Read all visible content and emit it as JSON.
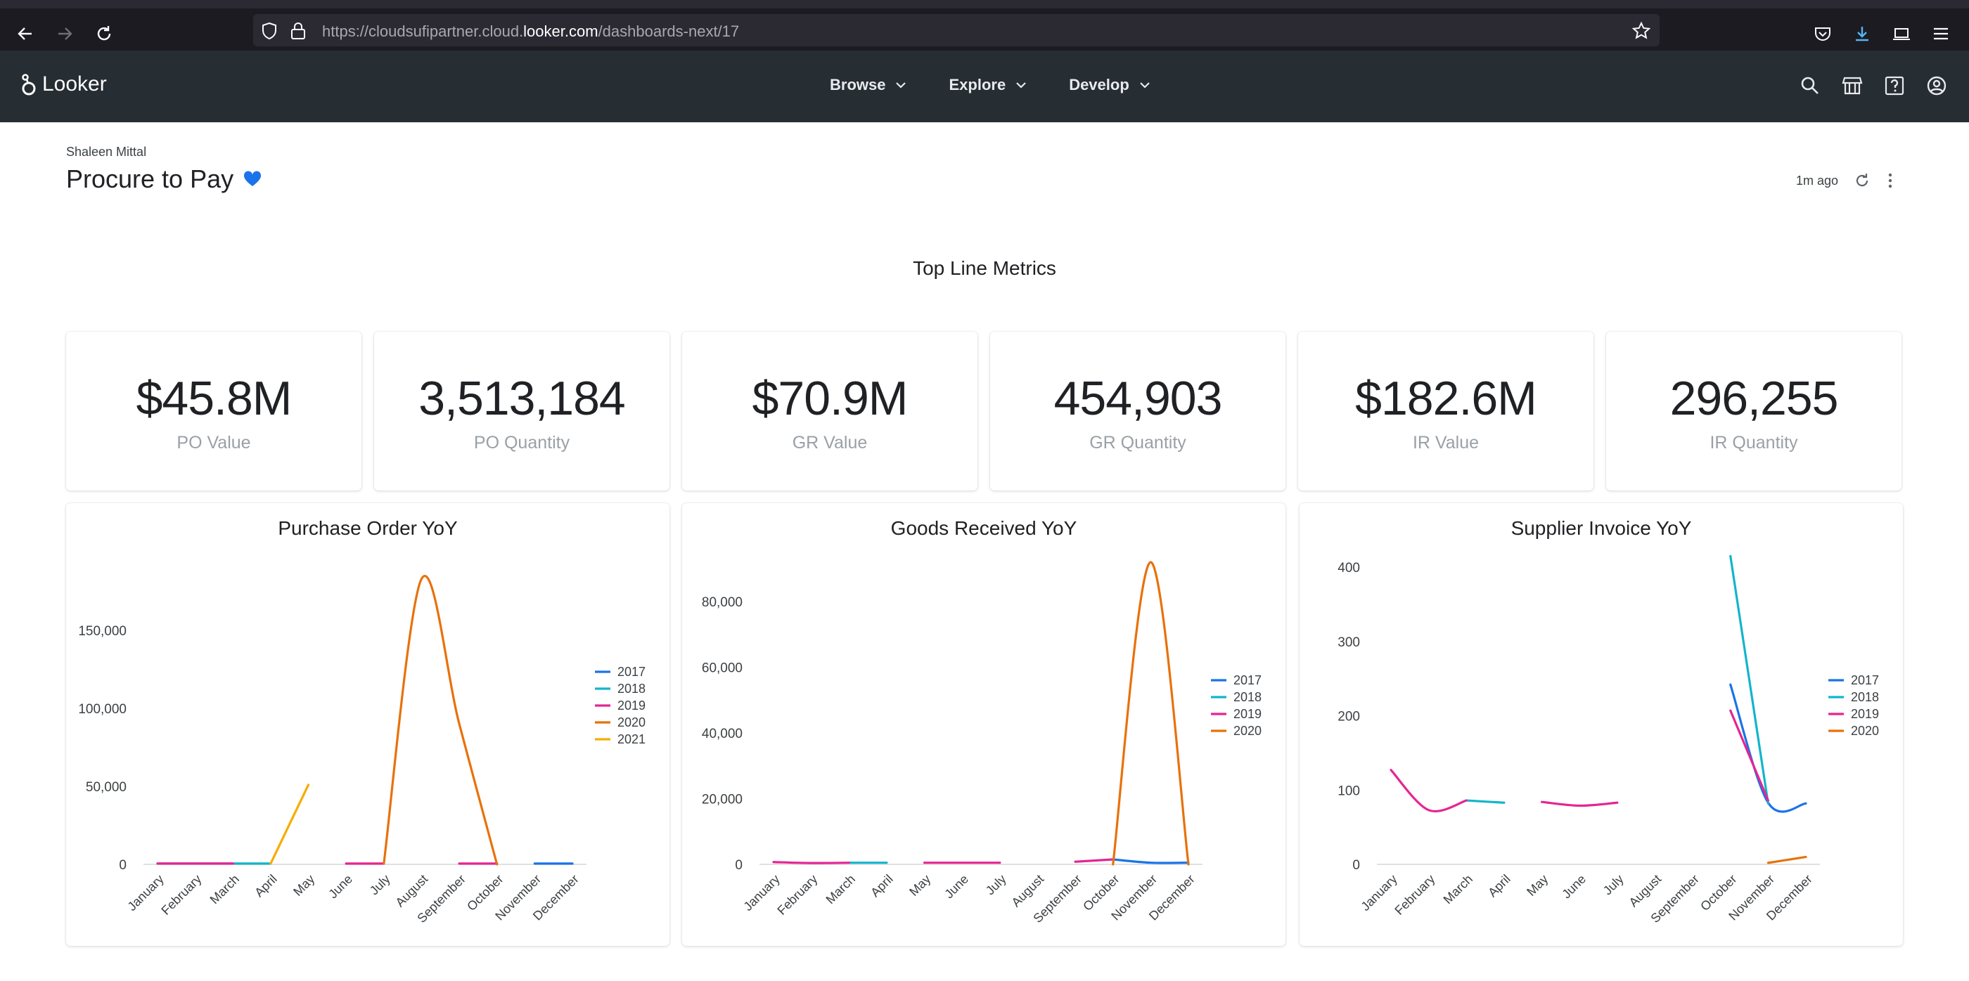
{
  "browser": {
    "url_prefix": "https://cloudsufipartner.cloud.",
    "url_domain": "looker.com",
    "url_path": "/dashboards-next/17"
  },
  "app": {
    "logo_text": "Looker",
    "nav": [
      {
        "label": "Browse"
      },
      {
        "label": "Explore"
      },
      {
        "label": "Develop"
      }
    ]
  },
  "dashboard": {
    "owner": "Shaleen Mittal",
    "title": "Procure to Pay",
    "updated": "1m ago",
    "section_title": "Top Line Metrics",
    "accent_color": "#1a73e8"
  },
  "kpis": [
    {
      "value": "$45.8M",
      "label": "PO Value"
    },
    {
      "value": "3,513,184",
      "label": "PO Quantity"
    },
    {
      "value": "$70.9M",
      "label": "GR Value"
    },
    {
      "value": "454,903",
      "label": "GR Quantity"
    },
    {
      "value": "$182.6M",
      "label": "IR Value"
    },
    {
      "value": "296,255",
      "label": "IR Quantity"
    }
  ],
  "chart_data": [
    {
      "type": "line",
      "title": "Purchase Order YoY",
      "categories": [
        "January",
        "February",
        "March",
        "April",
        "May",
        "June",
        "July",
        "August",
        "September",
        "October",
        "November",
        "December"
      ],
      "ylim": [
        0,
        200000
      ],
      "yticks": [
        0,
        50000,
        100000,
        150000
      ],
      "ytick_labels": [
        "0",
        "50,000",
        "100,000",
        "150,000"
      ],
      "legend_position": "right",
      "series": [
        {
          "name": "2017",
          "color": "#1a73e8",
          "values": [
            null,
            null,
            null,
            null,
            null,
            null,
            null,
            null,
            null,
            null,
            500,
            500
          ]
        },
        {
          "name": "2018",
          "color": "#12b5cb",
          "values": [
            500,
            500,
            500,
            500,
            null,
            null,
            null,
            null,
            null,
            null,
            null,
            null
          ]
        },
        {
          "name": "2019",
          "color": "#e52592",
          "values": [
            500,
            500,
            500,
            null,
            null,
            500,
            500,
            null,
            500,
            500,
            null,
            null
          ]
        },
        {
          "name": "2020",
          "color": "#e8710a",
          "values": [
            null,
            null,
            null,
            null,
            null,
            null,
            500,
            183000,
            90000,
            0,
            null,
            null
          ]
        },
        {
          "name": "2021",
          "color": "#f9ab00",
          "values": [
            null,
            null,
            null,
            500,
            51000,
            null,
            null,
            null,
            null,
            null,
            null,
            null
          ]
        }
      ]
    },
    {
      "type": "line",
      "title": "Goods Received YoY",
      "categories": [
        "January",
        "February",
        "March",
        "April",
        "May",
        "June",
        "July",
        "August",
        "September",
        "October",
        "November",
        "December"
      ],
      "ylim": [
        0,
        95000
      ],
      "yticks": [
        0,
        20000,
        40000,
        60000,
        80000
      ],
      "ytick_labels": [
        "0",
        "20,000",
        "40,000",
        "60,000",
        "80,000"
      ],
      "legend_position": "right",
      "series": [
        {
          "name": "2017",
          "color": "#1a73e8",
          "values": [
            null,
            null,
            null,
            null,
            null,
            null,
            null,
            null,
            null,
            1500,
            500,
            500
          ]
        },
        {
          "name": "2018",
          "color": "#12b5cb",
          "values": [
            null,
            null,
            500,
            500,
            null,
            null,
            null,
            null,
            null,
            null,
            null,
            null
          ]
        },
        {
          "name": "2019",
          "color": "#e52592",
          "values": [
            700,
            400,
            500,
            null,
            500,
            500,
            500,
            null,
            800,
            1500,
            null,
            null
          ]
        },
        {
          "name": "2020",
          "color": "#e8710a",
          "values": [
            null,
            null,
            null,
            null,
            null,
            null,
            null,
            null,
            null,
            0,
            92000,
            0
          ]
        }
      ]
    },
    {
      "type": "line",
      "title": "Supplier Invoice YoY",
      "categories": [
        "January",
        "February",
        "March",
        "April",
        "May",
        "June",
        "July",
        "August",
        "September",
        "October",
        "November",
        "December"
      ],
      "ylim": [
        0,
        420
      ],
      "yticks": [
        0,
        100,
        200,
        300,
        400
      ],
      "ytick_labels": [
        "0",
        "100",
        "200",
        "300",
        "400"
      ],
      "legend_position": "right",
      "series": [
        {
          "name": "2017",
          "color": "#1a73e8",
          "values": [
            null,
            null,
            null,
            null,
            null,
            null,
            null,
            null,
            null,
            242,
            83,
            82
          ]
        },
        {
          "name": "2018",
          "color": "#12b5cb",
          "values": [
            null,
            null,
            86,
            83,
            null,
            null,
            null,
            null,
            null,
            415,
            82,
            null
          ]
        },
        {
          "name": "2019",
          "color": "#e52592",
          "values": [
            127,
            73,
            86,
            null,
            84,
            79,
            83,
            null,
            null,
            207,
            86,
            null
          ]
        },
        {
          "name": "2020",
          "color": "#e8710a",
          "values": [
            null,
            null,
            null,
            null,
            null,
            null,
            null,
            null,
            null,
            null,
            2,
            10
          ]
        }
      ]
    }
  ]
}
